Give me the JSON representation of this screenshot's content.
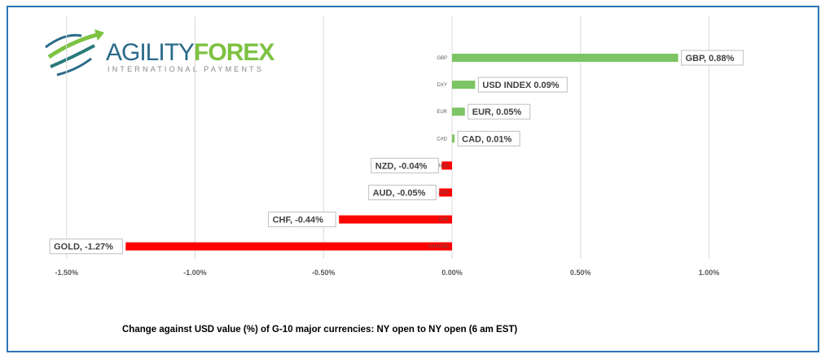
{
  "logo": {
    "word1": "AGILITY",
    "word2": "FOREX",
    "tagline": "INTERNATIONAL PAYMENTS",
    "colors": {
      "blue": "#2a6a8a",
      "green": "#7dc242"
    }
  },
  "chart_data": {
    "type": "bar",
    "orientation": "horizontal",
    "categories": [
      "GBP",
      "DXY",
      "EUR",
      "CAD",
      "NZD",
      "AUD",
      "CHF",
      "XAUUSD"
    ],
    "values": [
      0.88,
      0.09,
      0.05,
      0.01,
      -0.04,
      -0.05,
      -0.44,
      -1.27
    ],
    "data_labels": [
      "GBP, 0.88%",
      "USD INDEX 0.09%",
      "EUR, 0.05%",
      "CAD, 0.01%",
      "NZD, -0.04%",
      "AUD, -0.05%",
      "CHF, -0.44%",
      "GOLD, -1.27%"
    ],
    "xlim": [
      -1.5,
      1.0
    ],
    "xticks": [
      "-1.50%",
      "-1.00%",
      "-0.50%",
      "0.00%",
      "0.50%",
      "1.00%"
    ],
    "xtick_values": [
      -1.5,
      -1.0,
      -0.5,
      0,
      0.5,
      1.0
    ],
    "grid": true,
    "positive_color": "#7dc464",
    "negative_color": "#ff0000",
    "caption": "Change against  USD value (%)  of  G-10 major currencies:  NY open to NY open  (6 am EST)"
  }
}
